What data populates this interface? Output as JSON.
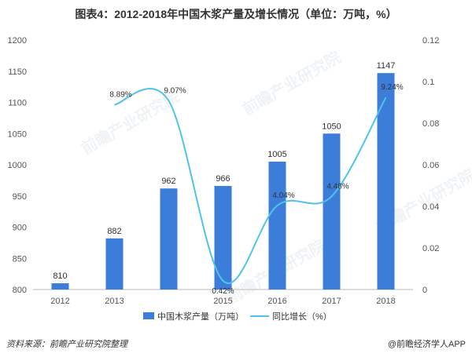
{
  "header": {
    "title": "图表4：2012-2018年中国木浆产量及增长情况（单位：万吨，%）"
  },
  "footer": {
    "source": "资料来源：前瞻产业研究院整理",
    "brand": "@前瞻经济学人APP"
  },
  "watermark": "前瞻产业研究院",
  "colors": {
    "bar": "#3b7dd8",
    "line": "#4fc3e8",
    "axis_text": "#555555",
    "grid": "#e6e6e6"
  },
  "chart_data": {
    "type": "bar",
    "categories": [
      "2012",
      "2013",
      "",
      "2015",
      "2016",
      "2017",
      "2018"
    ],
    "series": [
      {
        "name": "中国木浆产量（万吨）",
        "type": "bar",
        "axis": "left",
        "values": [
          810,
          882,
          962,
          966,
          1005,
          1050,
          1147
        ],
        "labels": [
          "810",
          "882",
          "962",
          "966",
          "1005",
          "1050",
          "1147"
        ]
      },
      {
        "name": "同比增长（%）",
        "type": "line",
        "axis": "right",
        "values": [
          null,
          0.0889,
          0.0907,
          0.0042,
          0.0404,
          0.0448,
          0.0924
        ],
        "labels": [
          "",
          "8.89%",
          "9.07%",
          "0.42%",
          "4.04%",
          "4.48%",
          "9.24%"
        ]
      }
    ],
    "left_axis": {
      "ylim": [
        800,
        1200
      ],
      "ticks": [
        "800",
        "850",
        "900",
        "950",
        "1000",
        "1050",
        "1100",
        "1150",
        "1200"
      ]
    },
    "right_axis": {
      "ylim": [
        0,
        0.12
      ],
      "ticks": [
        "0",
        "0.02",
        "0.04",
        "0.06",
        "0.08",
        "0.1",
        "0.12"
      ]
    },
    "legend_position": "bottom-center",
    "grid": false
  }
}
